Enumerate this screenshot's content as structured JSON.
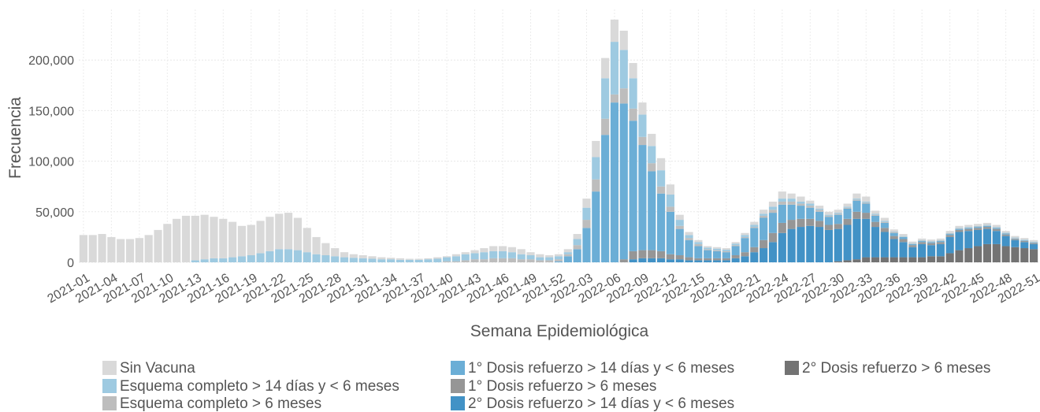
{
  "chart_data": {
    "type": "stacked_bar",
    "x_label": "Semana Epidemiológica",
    "y_label": "Frecuencia",
    "categories": [
      "2021-01",
      null,
      null,
      "2021-04",
      null,
      null,
      "2021-07",
      null,
      null,
      "2021-10",
      null,
      null,
      "2021-13",
      null,
      null,
      "2021-16",
      null,
      null,
      "2021-19",
      null,
      null,
      "2021-22",
      null,
      null,
      "2021-25",
      null,
      null,
      "2021-28",
      null,
      null,
      "2021-31",
      null,
      null,
      "2021-34",
      null,
      null,
      "2021-37",
      null,
      null,
      "2021-40",
      null,
      null,
      "2021-43",
      null,
      null,
      "2021-46",
      null,
      null,
      "2021-49",
      null,
      null,
      "2021-52",
      null,
      null,
      "2022-03",
      null,
      null,
      "2022-06",
      null,
      null,
      "2022-09",
      null,
      null,
      "2022-12",
      null,
      null,
      "2022-15",
      null,
      null,
      "2022-18",
      null,
      null,
      "2022-21",
      null,
      null,
      "2022-24",
      null,
      null,
      "2022-27",
      null,
      null,
      "2022-30",
      null,
      null,
      "2022-33",
      null,
      null,
      "2022-36",
      null,
      null,
      "2022-39",
      null,
      null,
      "2022-42",
      null,
      null,
      "2022-45",
      null,
      null,
      "2022-48",
      null,
      null,
      "2022-51"
    ],
    "series": [
      {
        "name": "Sin Vacuna",
        "color": "#d9d9d9",
        "values": [
          27000,
          27000,
          28000,
          25000,
          23000,
          23000,
          24000,
          27000,
          32000,
          38000,
          43000,
          46000,
          44000,
          44000,
          41000,
          39000,
          35000,
          30000,
          30000,
          32000,
          34000,
          35000,
          36000,
          32000,
          24000,
          17000,
          12000,
          8000,
          5000,
          3500,
          3000,
          2500,
          2000,
          1500,
          1500,
          1000,
          1000,
          1000,
          1500,
          1000,
          2000,
          2000,
          3000,
          4000,
          5000,
          5000,
          5000,
          5000,
          3000,
          3000,
          2000,
          2000,
          3000,
          5000,
          9000,
          16000,
          20000,
          22000,
          19000,
          15000,
          12000,
          12000,
          12000,
          10000,
          5000,
          3000,
          2000,
          1500,
          1500,
          1500,
          1500,
          2000,
          3000,
          4000,
          5000,
          7000,
          5000,
          5000,
          3000,
          3000,
          3000,
          3000,
          3000,
          5000,
          5000,
          3000,
          3000,
          2000,
          2000,
          1500,
          1500,
          1500,
          1500,
          2000,
          2000,
          2000,
          2000,
          2000,
          2000,
          1500,
          1500,
          1500,
          1500
        ]
      },
      {
        "name": "Esquema completo > 14 días y < 6 meses",
        "color": "#9ecae1",
        "values": [
          0,
          0,
          0,
          0,
          0,
          0,
          0,
          0,
          0,
          0,
          0,
          0,
          2000,
          3000,
          4000,
          4000,
          5000,
          6000,
          7000,
          9000,
          11000,
          13000,
          13000,
          12000,
          10000,
          8000,
          7000,
          6000,
          5000,
          4500,
          4000,
          3500,
          3000,
          3000,
          2500,
          2500,
          2500,
          3000,
          3500,
          4000,
          5000,
          6000,
          6000,
          7000,
          7000,
          7000,
          6000,
          5000,
          4000,
          3000,
          3000,
          3000,
          2000,
          6000,
          12000,
          22000,
          40000,
          52000,
          38000,
          30000,
          22000,
          17000,
          16000,
          12000,
          6000,
          3000,
          2000,
          1500,
          1500,
          1500,
          1500,
          2000,
          2000,
          2000,
          3000,
          3000,
          3000,
          2000,
          2000,
          1000,
          1000,
          1000,
          1000,
          1000,
          1000,
          1000,
          1000,
          500,
          500,
          500,
          500,
          500,
          500,
          500,
          500,
          500,
          500,
          500,
          500,
          500,
          500,
          500,
          500
        ]
      },
      {
        "name": "Esquema completo > 6 meses",
        "color": "#bdbdbd",
        "values": [
          0,
          0,
          0,
          0,
          0,
          0,
          0,
          0,
          0,
          0,
          0,
          0,
          0,
          0,
          0,
          0,
          0,
          0,
          0,
          0,
          0,
          0,
          0,
          0,
          0,
          0,
          0,
          0,
          0,
          0,
          0,
          0,
          0,
          0,
          0,
          0,
          0,
          0,
          0,
          1000,
          1000,
          2000,
          3000,
          3000,
          4000,
          4000,
          4000,
          3000,
          3000,
          2000,
          2000,
          2000,
          2000,
          4000,
          8000,
          12000,
          16000,
          8000,
          15000,
          12000,
          8000,
          8000,
          7000,
          5000,
          3000,
          2000,
          2000,
          1000,
          1000,
          1000,
          1000,
          1000,
          1000,
          2000,
          3000,
          3000,
          3000,
          2000,
          2000,
          2000,
          1000,
          1000,
          1000,
          1000,
          1000,
          1000,
          1000,
          1000,
          500,
          500,
          500,
          500,
          500,
          500,
          500,
          500,
          500,
          500,
          500,
          500,
          500,
          500,
          500
        ]
      },
      {
        "name": "1° Dosis refuerzo > 14 días y < 6 meses",
        "color": "#6baed6",
        "values": [
          0,
          0,
          0,
          0,
          0,
          0,
          0,
          0,
          0,
          0,
          0,
          0,
          0,
          0,
          0,
          0,
          0,
          0,
          0,
          0,
          0,
          0,
          0,
          0,
          0,
          0,
          0,
          0,
          0,
          0,
          0,
          0,
          0,
          0,
          0,
          0,
          0,
          0,
          0,
          0,
          0,
          0,
          0,
          0,
          0,
          0,
          0,
          0,
          0,
          0,
          0,
          1000,
          6000,
          13000,
          34000,
          70000,
          126000,
          158000,
          154000,
          129000,
          104000,
          78000,
          57000,
          42000,
          26000,
          17000,
          12000,
          8000,
          7000,
          6000,
          9000,
          14000,
          19000,
          22000,
          20000,
          18000,
          15000,
          13000,
          11000,
          9000,
          8000,
          9000,
          10000,
          11000,
          9000,
          6000,
          5000,
          3000,
          2000,
          1000,
          1000,
          1000,
          1000,
          1000,
          1000,
          1000,
          1000,
          1000,
          1000,
          1000,
          500,
          500,
          500
        ]
      },
      {
        "name": "1° Dosis refuerzo > 6 meses",
        "color": "#969696",
        "values": [
          0,
          0,
          0,
          0,
          0,
          0,
          0,
          0,
          0,
          0,
          0,
          0,
          0,
          0,
          0,
          0,
          0,
          0,
          0,
          0,
          0,
          0,
          0,
          0,
          0,
          0,
          0,
          0,
          0,
          0,
          0,
          0,
          0,
          0,
          0,
          0,
          0,
          0,
          0,
          0,
          0,
          0,
          0,
          0,
          0,
          0,
          0,
          0,
          0,
          0,
          0,
          0,
          0,
          0,
          0,
          0,
          0,
          0,
          3000,
          8000,
          8000,
          8000,
          7000,
          5000,
          4000,
          3000,
          2000,
          2000,
          2000,
          2000,
          3000,
          4000,
          5000,
          8000,
          9000,
          10000,
          9000,
          8000,
          7000,
          6000,
          5000,
          5000,
          6000,
          7000,
          6000,
          5000,
          4000,
          3000,
          3000,
          2000,
          2000,
          2000,
          2000,
          2000,
          2000,
          2000,
          2000,
          2000,
          2000,
          1500,
          1000,
          1000,
          1000
        ]
      },
      {
        "name": "2° Dosis refuerzo > 14 días y < 6 meses",
        "color": "#4292c6",
        "values": [
          0,
          0,
          0,
          0,
          0,
          0,
          0,
          0,
          0,
          0,
          0,
          0,
          0,
          0,
          0,
          0,
          0,
          0,
          0,
          0,
          0,
          0,
          0,
          0,
          0,
          0,
          0,
          0,
          0,
          0,
          0,
          0,
          0,
          0,
          0,
          0,
          0,
          0,
          0,
          0,
          0,
          0,
          0,
          0,
          0,
          0,
          0,
          0,
          0,
          0,
          0,
          0,
          0,
          0,
          0,
          0,
          0,
          0,
          0,
          3000,
          4000,
          4000,
          4000,
          3000,
          3000,
          2000,
          2000,
          2000,
          2000,
          2000,
          4000,
          6000,
          10000,
          14000,
          20000,
          29000,
          33000,
          35000,
          36000,
          35000,
          32000,
          32000,
          35000,
          40000,
          38000,
          30000,
          25000,
          18000,
          15000,
          10000,
          13000,
          11000,
          12000,
          16000,
          18000,
          17000,
          16000,
          15000,
          13000,
          10000,
          7000,
          6000,
          5000
        ]
      },
      {
        "name": "2° Dosis refuerzo > 6 meses",
        "color": "#737373",
        "values": [
          0,
          0,
          0,
          0,
          0,
          0,
          0,
          0,
          0,
          0,
          0,
          0,
          0,
          0,
          0,
          0,
          0,
          0,
          0,
          0,
          0,
          0,
          0,
          0,
          0,
          0,
          0,
          0,
          0,
          0,
          0,
          0,
          0,
          0,
          0,
          0,
          0,
          0,
          0,
          0,
          0,
          0,
          0,
          0,
          0,
          0,
          0,
          0,
          0,
          0,
          0,
          0,
          0,
          0,
          0,
          0,
          0,
          0,
          0,
          0,
          0,
          0,
          0,
          0,
          0,
          0,
          0,
          0,
          0,
          0,
          0,
          0,
          0,
          0,
          0,
          0,
          0,
          0,
          0,
          0,
          0,
          1000,
          2000,
          3000,
          5000,
          5000,
          5000,
          5000,
          5000,
          5000,
          5000,
          6000,
          6000,
          9000,
          12000,
          14000,
          16000,
          18000,
          18000,
          16000,
          15000,
          14000,
          13000
        ]
      }
    ],
    "ylim": [
      0,
      250000
    ],
    "yticks": [
      0,
      {
        "value": 50000,
        "label": "50,000"
      },
      {
        "value": 100000,
        "label": "100,000"
      },
      {
        "value": 150000,
        "label": "150,000"
      },
      {
        "value": 200000,
        "label": "200,000"
      }
    ],
    "grid": true
  }
}
